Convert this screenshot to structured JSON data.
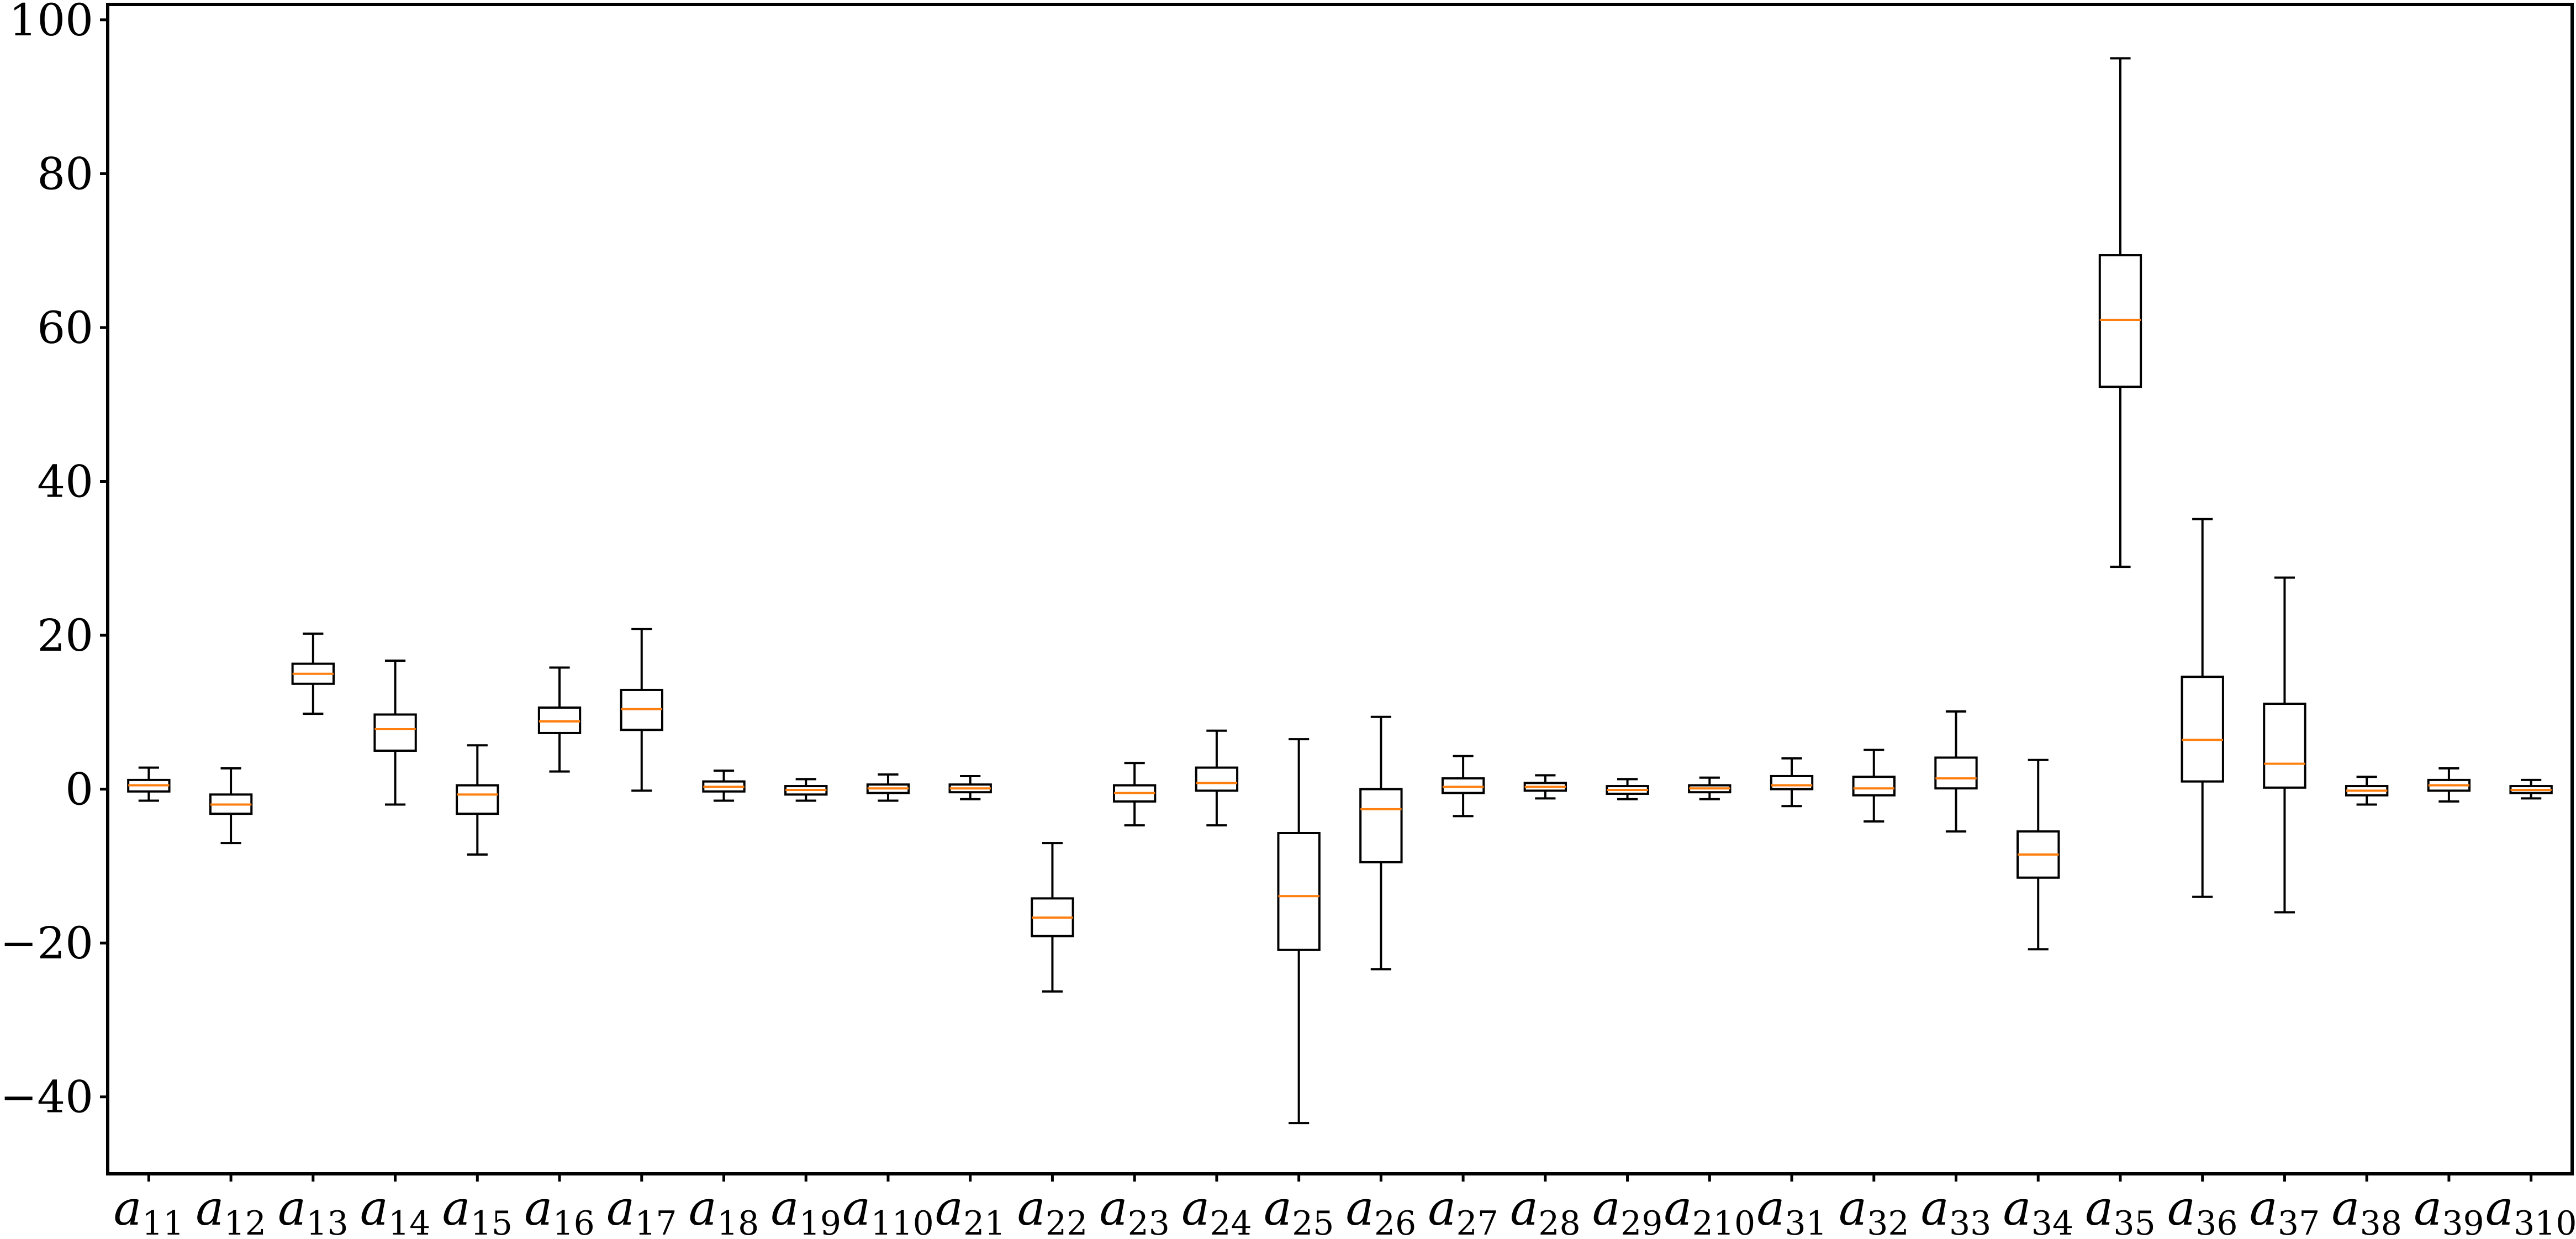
{
  "chart_data": {
    "type": "boxplot",
    "title": "",
    "xlabel": "",
    "ylabel": "",
    "ylim": [
      -50,
      102
    ],
    "yticks": [
      -40,
      -20,
      0,
      20,
      40,
      60,
      80,
      100
    ],
    "grid": false,
    "colors": {
      "box": "#000000",
      "median": "#ff7f0e"
    },
    "categories": [
      "a11",
      "a12",
      "a13",
      "a14",
      "a15",
      "a16",
      "a17",
      "a18",
      "a19",
      "a110",
      "a21",
      "a22",
      "a23",
      "a24",
      "a25",
      "a26",
      "a27",
      "a28",
      "a29",
      "a210",
      "a31",
      "a32",
      "a33",
      "a34",
      "a35",
      "a36",
      "a37",
      "a38",
      "a39",
      "a310"
    ],
    "series": [
      {
        "boxes": [
          {
            "label": "a11",
            "base": "a",
            "sub": "11",
            "whislo": -1.5,
            "q1": -0.3,
            "med": 0.5,
            "q3": 1.2,
            "whishi": 2.8
          },
          {
            "label": "a12",
            "base": "a",
            "sub": "12",
            "whislo": -7.0,
            "q1": -3.2,
            "med": -2.0,
            "q3": -0.7,
            "whishi": 2.7
          },
          {
            "label": "a13",
            "base": "a",
            "sub": "13",
            "whislo": 9.8,
            "q1": 13.7,
            "med": 15.0,
            "q3": 16.3,
            "whishi": 20.2
          },
          {
            "label": "a14",
            "base": "a",
            "sub": "14",
            "whislo": -2.0,
            "q1": 5.0,
            "med": 7.8,
            "q3": 9.7,
            "whishi": 16.7
          },
          {
            "label": "a15",
            "base": "a",
            "sub": "15",
            "whislo": -8.5,
            "q1": -3.2,
            "med": -0.7,
            "q3": 0.5,
            "whishi": 5.7
          },
          {
            "label": "a16",
            "base": "a",
            "sub": "16",
            "whislo": 2.3,
            "q1": 7.3,
            "med": 8.8,
            "q3": 10.6,
            "whishi": 15.8
          },
          {
            "label": "a17",
            "base": "a",
            "sub": "17",
            "whislo": -0.2,
            "q1": 7.7,
            "med": 10.4,
            "q3": 12.9,
            "whishi": 20.8
          },
          {
            "label": "a18",
            "base": "a",
            "sub": "18",
            "whislo": -1.5,
            "q1": -0.3,
            "med": 0.3,
            "q3": 1.0,
            "whishi": 2.4
          },
          {
            "label": "a19",
            "base": "a",
            "sub": "19",
            "whislo": -1.5,
            "q1": -0.7,
            "med": -0.1,
            "q3": 0.4,
            "whishi": 1.3
          },
          {
            "label": "a110",
            "base": "a",
            "sub": "110",
            "whislo": -1.5,
            "q1": -0.5,
            "med": 0.1,
            "q3": 0.6,
            "whishi": 1.9
          },
          {
            "label": "a21",
            "base": "a",
            "sub": "21",
            "whislo": -1.3,
            "q1": -0.4,
            "med": 0.1,
            "q3": 0.6,
            "whishi": 1.7
          },
          {
            "label": "a22",
            "base": "a",
            "sub": "22",
            "whislo": -26.3,
            "q1": -19.1,
            "med": -16.7,
            "q3": -14.2,
            "whishi": -7.0
          },
          {
            "label": "a23",
            "base": "a",
            "sub": "23",
            "whislo": -4.7,
            "q1": -1.6,
            "med": -0.5,
            "q3": 0.5,
            "whishi": 3.4
          },
          {
            "label": "a24",
            "base": "a",
            "sub": "24",
            "whislo": -4.7,
            "q1": -0.2,
            "med": 0.8,
            "q3": 2.8,
            "whishi": 7.6
          },
          {
            "label": "a25",
            "base": "a",
            "sub": "25",
            "whislo": -43.4,
            "q1": -20.9,
            "med": -13.9,
            "q3": -5.7,
            "whishi": 6.5
          },
          {
            "label": "a26",
            "base": "a",
            "sub": "26",
            "whislo": -23.4,
            "q1": -9.5,
            "med": -2.6,
            "q3": 0.0,
            "whishi": 9.4
          },
          {
            "label": "a27",
            "base": "a",
            "sub": "27",
            "whislo": -3.5,
            "q1": -0.5,
            "med": 0.3,
            "q3": 1.4,
            "whishi": 4.3
          },
          {
            "label": "a28",
            "base": "a",
            "sub": "28",
            "whislo": -1.2,
            "q1": -0.2,
            "med": 0.3,
            "q3": 0.8,
            "whishi": 1.8
          },
          {
            "label": "a29",
            "base": "a",
            "sub": "29",
            "whislo": -1.3,
            "q1": -0.6,
            "med": -0.1,
            "q3": 0.4,
            "whishi": 1.3
          },
          {
            "label": "a210",
            "base": "a",
            "sub": "210",
            "whislo": -1.3,
            "q1": -0.4,
            "med": 0.1,
            "q3": 0.5,
            "whishi": 1.5
          },
          {
            "label": "a31",
            "base": "a",
            "sub": "31",
            "whislo": -2.2,
            "q1": 0.0,
            "med": 0.5,
            "q3": 1.7,
            "whishi": 4.0
          },
          {
            "label": "a32",
            "base": "a",
            "sub": "32",
            "whislo": -4.2,
            "q1": -0.8,
            "med": 0.1,
            "q3": 1.6,
            "whishi": 5.1
          },
          {
            "label": "a33",
            "base": "a",
            "sub": "33",
            "whislo": -5.5,
            "q1": 0.1,
            "med": 1.4,
            "q3": 4.1,
            "whishi": 10.1
          },
          {
            "label": "a34",
            "base": "a",
            "sub": "34",
            "whislo": -20.8,
            "q1": -11.5,
            "med": -8.5,
            "q3": -5.5,
            "whishi": 3.8
          },
          {
            "label": "a35",
            "base": "a",
            "sub": "35",
            "whislo": 28.9,
            "q1": 52.3,
            "med": 61.0,
            "q3": 69.4,
            "whishi": 95.0
          },
          {
            "label": "a36",
            "base": "a",
            "sub": "36",
            "whislo": -14.0,
            "q1": 1.0,
            "med": 6.4,
            "q3": 14.6,
            "whishi": 35.1
          },
          {
            "label": "a37",
            "base": "a",
            "sub": "37",
            "whislo": -16.0,
            "q1": 0.2,
            "med": 3.3,
            "q3": 11.1,
            "whishi": 27.5
          },
          {
            "label": "a38",
            "base": "a",
            "sub": "38",
            "whislo": -2.0,
            "q1": -0.8,
            "med": -0.2,
            "q3": 0.4,
            "whishi": 1.6
          },
          {
            "label": "a39",
            "base": "a",
            "sub": "39",
            "whislo": -1.6,
            "q1": -0.2,
            "med": 0.5,
            "q3": 1.2,
            "whishi": 2.7
          },
          {
            "label": "a310",
            "base": "a",
            "sub": "310",
            "whislo": -1.2,
            "q1": -0.5,
            "med": -0.1,
            "q3": 0.4,
            "whishi": 1.2
          }
        ]
      }
    ]
  }
}
